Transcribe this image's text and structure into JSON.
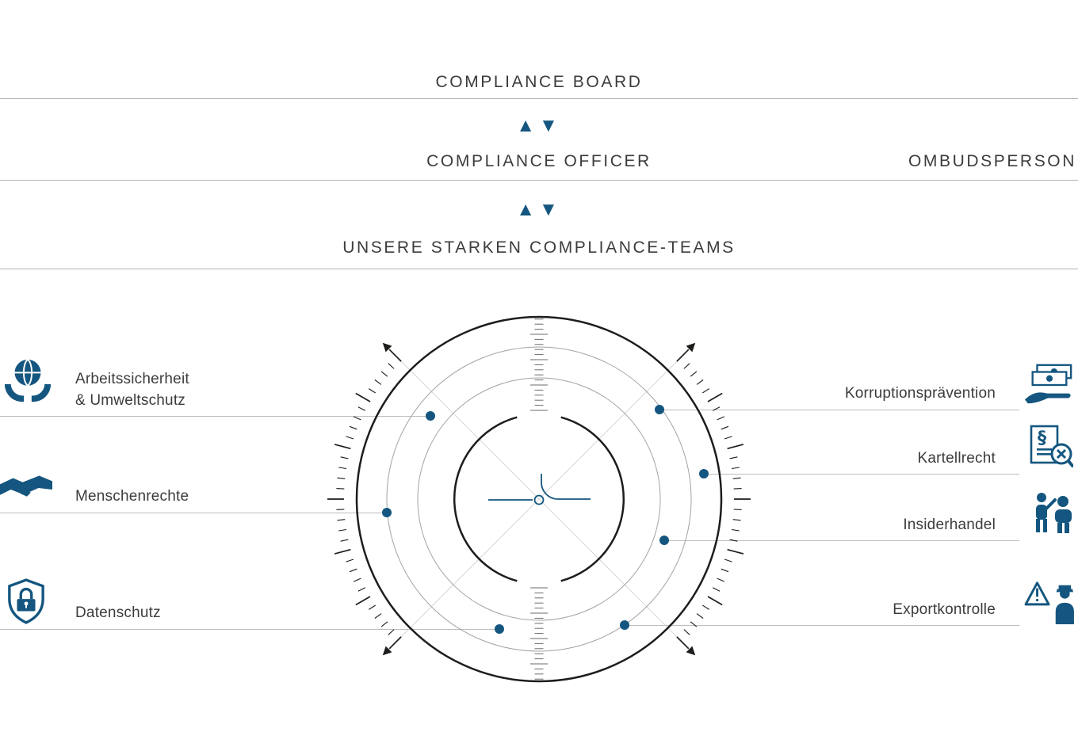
{
  "colors": {
    "accent": "#14567f",
    "text": "#3c3c3b",
    "leader_line": "#bdbdbd",
    "ring_dark": "#1d1d1b"
  },
  "hierarchy": {
    "board_label": "COMPLIANCE BOARD",
    "officer_label": "COMPLIANCE OFFICER",
    "ombudsperson_label": "OMBUDSPERSON",
    "teams_label": "UNSERE STARKEN COMPLIANCE-TEAMS",
    "arrow_up": "▲",
    "arrow_down": "▼"
  },
  "left_items": [
    {
      "label": "Arbeitssicherheit\n& Umweltschutz",
      "icon": "globe-hands-icon"
    },
    {
      "label": "Menschenrechte",
      "icon": "handshake-icon"
    },
    {
      "label": "Datenschutz",
      "icon": "shield-lock-icon"
    }
  ],
  "right_items": [
    {
      "label": "Korruptionsprävention",
      "icon": "cash-hand-icon"
    },
    {
      "label": "Kartellrecht",
      "icon": "paragraph-search-icon"
    },
    {
      "label": "Insiderhandel",
      "icon": "two-people-icon"
    },
    {
      "label": "Exportkontrolle",
      "icon": "warning-officer-icon"
    }
  ],
  "icons": {
    "paragraph_glyph": "§"
  }
}
